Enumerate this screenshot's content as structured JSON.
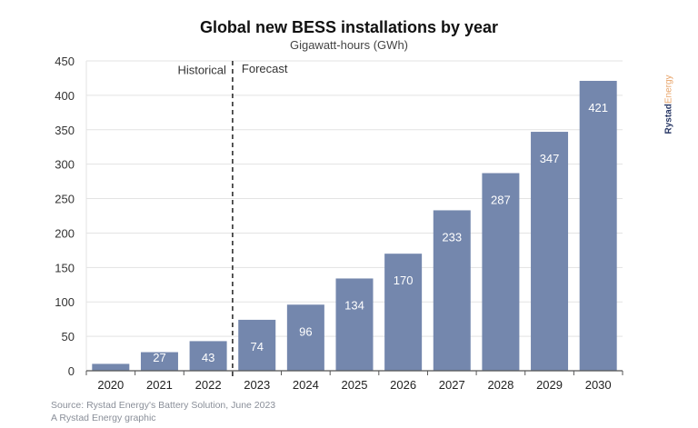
{
  "chart_data": {
    "type": "bar",
    "title": "Global new BESS installations by year",
    "subtitle": "Gigawatt-hours (GWh)",
    "categories": [
      "2020",
      "2021",
      "2022",
      "2023",
      "2024",
      "2025",
      "2026",
      "2027",
      "2028",
      "2029",
      "2030"
    ],
    "values": [
      10,
      27,
      43,
      74,
      96,
      134,
      170,
      233,
      287,
      347,
      421
    ],
    "data_labels": [
      "",
      "27",
      "43",
      "74",
      "96",
      "134",
      "170",
      "233",
      "287",
      "347",
      "421"
    ],
    "ylim": [
      0,
      450
    ],
    "yticks": [
      0,
      50,
      100,
      150,
      200,
      250,
      300,
      350,
      400,
      450
    ],
    "grid": true,
    "bar_color": "#7487ad",
    "annotations": {
      "divider_between": [
        "2022",
        "2023"
      ],
      "left": "Historical",
      "right": "Forecast"
    }
  },
  "source": "Source: Rystad Energy's Battery Solution, June 2023",
  "credit": "A Rystad Energy graphic",
  "logo": {
    "part1": "Rystad",
    "part2": "Energy",
    "color1": "#2b3a67",
    "color2": "#e8a56b"
  }
}
